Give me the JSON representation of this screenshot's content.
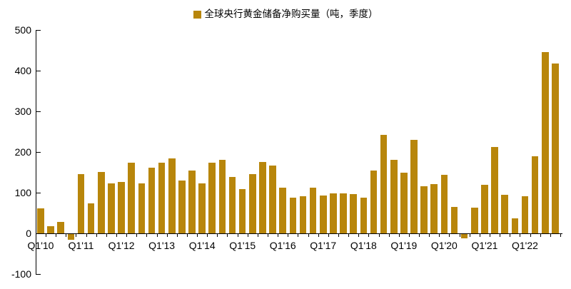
{
  "chart_data": {
    "type": "bar",
    "legend_label": "全球央行黄金储备净购买量（吨，季度）",
    "legend_position": "top-center",
    "bar_color": "#B8860B",
    "grid": false,
    "ylim": [
      -100,
      500
    ],
    "yticks": [
      500,
      400,
      300,
      200,
      100,
      0,
      -100
    ],
    "ytick_labels": [
      "500",
      "400",
      "300",
      "200",
      "100",
      "0",
      "-100"
    ],
    "xtick_labels_shown": [
      "Q1'10",
      "Q1'11",
      "Q1'12",
      "Q1'13",
      "Q1'14",
      "Q1'15",
      "Q1'16",
      "Q1'17",
      "Q1'18",
      "Q1'19",
      "Q1'20",
      "Q1'21",
      "Q1'22"
    ],
    "categories": [
      "Q1'10",
      "Q2'10",
      "Q3'10",
      "Q4'10",
      "Q1'11",
      "Q2'11",
      "Q3'11",
      "Q4'11",
      "Q1'12",
      "Q2'12",
      "Q3'12",
      "Q4'12",
      "Q1'13",
      "Q2'13",
      "Q3'13",
      "Q4'13",
      "Q1'14",
      "Q2'14",
      "Q3'14",
      "Q4'14",
      "Q1'15",
      "Q2'15",
      "Q3'15",
      "Q4'15",
      "Q1'16",
      "Q2'16",
      "Q3'16",
      "Q4'16",
      "Q1'17",
      "Q2'17",
      "Q3'17",
      "Q4'17",
      "Q1'18",
      "Q2'18",
      "Q3'18",
      "Q4'18",
      "Q1'19",
      "Q2'19",
      "Q3'19",
      "Q4'19",
      "Q1'20",
      "Q2'20",
      "Q3'20",
      "Q4'20",
      "Q1'21",
      "Q2'21",
      "Q3'21",
      "Q4'21",
      "Q1'22",
      "Q2'22",
      "Q3'22",
      "Q4'22"
    ],
    "values": [
      62,
      18,
      28,
      -14,
      145,
      73,
      151,
      122,
      126,
      173,
      122,
      161,
      173,
      184,
      130,
      154,
      122,
      174,
      180,
      138,
      109,
      145,
      176,
      166,
      113,
      87,
      92,
      112,
      93,
      99,
      99,
      97,
      87,
      155,
      242,
      181,
      149,
      230,
      116,
      121,
      143,
      65,
      -10,
      64,
      119,
      212,
      95,
      36,
      91,
      189,
      445,
      418
    ]
  }
}
